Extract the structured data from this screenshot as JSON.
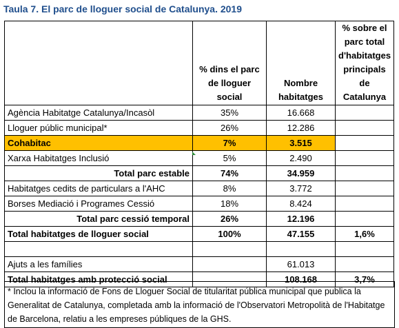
{
  "title": "Taula 7. El parc de lloguer social de Catalunya. 2019",
  "headers": {
    "col1": "",
    "col2": "% dins el parc de lloguer social",
    "col3": "Nombre habitatges",
    "col4": "% sobre el parc total d'habitatges principals de Catalunya"
  },
  "rows": [
    {
      "label": "Agència Habitatge Catalunya/Incasòl",
      "pct": "35%",
      "num": "16.668",
      "pct_total": ""
    },
    {
      "label": "Lloguer públic municipal*",
      "pct": "26%",
      "num": "12.286",
      "pct_total": ""
    },
    {
      "label": "Cohabitac",
      "pct": "7%",
      "num": "3.515",
      "pct_total": ""
    },
    {
      "label": "Xarxa Habitatges Inclusió",
      "pct": "5%",
      "num": "2.490",
      "pct_total": ""
    },
    {
      "label": "Total parc estable",
      "pct": "74%",
      "num": "34.959",
      "pct_total": ""
    },
    {
      "label": "Habitatges cedits de particulars a l'AHC",
      "pct": "8%",
      "num": "3.772",
      "pct_total": ""
    },
    {
      "label": "Borses Mediació i Programes Cessió",
      "pct": "18%",
      "num": "8.424",
      "pct_total": ""
    },
    {
      "label": "Total parc cessió temporal",
      "pct": "26%",
      "num": "12.196",
      "pct_total": ""
    },
    {
      "label": "Total habitatges de lloguer social",
      "pct": "100%",
      "num": "47.155",
      "pct_total": "1,6%"
    },
    {
      "label": "",
      "pct": "",
      "num": "",
      "pct_total": ""
    },
    {
      "label": "Ajuts a les famílies",
      "pct": "",
      "num": "61.013",
      "pct_total": ""
    },
    {
      "label": "Total habitatges amb protecció social",
      "pct": "",
      "num": "108.168",
      "pct_total": "3,7%"
    }
  ],
  "note": "* Inclou la informació de Fons de Lloguer Social de titularitat pública municipal que publica la Generalitat de Catalunya, completada amb la informació de l'Observatori Metropolità de l'Habitatge de Barcelona, relatiu a les empreses públiques de la GHS.",
  "colors": {
    "title": "#1f4e8c",
    "highlight": "#ffc000"
  }
}
